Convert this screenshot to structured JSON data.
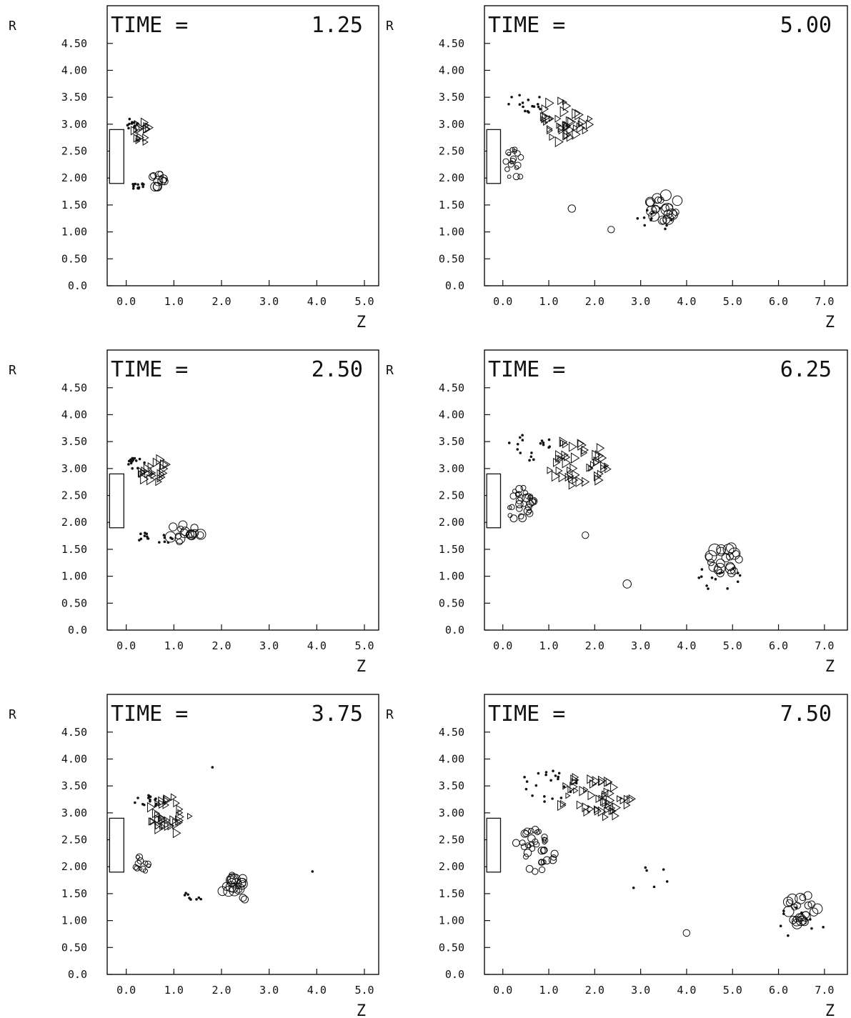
{
  "chart_data": [
    {
      "type": "scatter",
      "title_prefix": "TIME =",
      "time": "1.25",
      "xlabel": "Z",
      "ylabel": "R",
      "xticks": [
        "0.0",
        "1.0",
        "2.0",
        "3.0",
        "4.0",
        "5.0"
      ],
      "yticks": [
        "0.0",
        "0.50",
        "1.00",
        "1.50",
        "2.00",
        "2.50",
        "3.00",
        "3.50",
        "4.00",
        "4.50"
      ],
      "xlim": [
        -0.4,
        5.3
      ],
      "ylim": [
        0,
        5.2
      ],
      "nozzle": {
        "z": [
          -0.35,
          -0.05
        ],
        "r": [
          1.9,
          2.9
        ]
      },
      "clusters": [
        {
          "marker": "triangle",
          "cz": 0.3,
          "cr": 2.85,
          "sz": 0.18,
          "sr": 0.22,
          "n": 16,
          "size": 0.08
        },
        {
          "marker": "dot",
          "cz": 0.1,
          "cr": 3.0,
          "sz": 0.15,
          "sr": 0.1,
          "n": 12,
          "size": 0.03
        },
        {
          "marker": "circle",
          "cz": 0.7,
          "cr": 1.95,
          "sz": 0.18,
          "sr": 0.15,
          "n": 12,
          "size": 0.09
        },
        {
          "marker": "dot",
          "cz": 0.25,
          "cr": 1.85,
          "sz": 0.15,
          "sr": 0.06,
          "n": 14,
          "size": 0.03
        }
      ]
    },
    {
      "type": "scatter",
      "title_prefix": "TIME =",
      "time": "2.50",
      "xlabel": "Z",
      "ylabel": "R",
      "xticks": [
        "0.0",
        "1.0",
        "2.0",
        "3.0",
        "4.0",
        "5.0"
      ],
      "yticks": [
        "0.0",
        "0.50",
        "1.00",
        "1.50",
        "2.00",
        "2.50",
        "3.00",
        "3.50",
        "4.00",
        "4.50"
      ],
      "xlim": [
        -0.4,
        5.3
      ],
      "ylim": [
        0,
        5.2
      ],
      "nozzle": {
        "z": [
          -0.35,
          -0.05
        ],
        "r": [
          1.9,
          2.9
        ]
      },
      "clusters": [
        {
          "marker": "triangle",
          "cz": 0.6,
          "cr": 2.95,
          "sz": 0.3,
          "sr": 0.25,
          "n": 22,
          "size": 0.09
        },
        {
          "marker": "dot",
          "cz": 0.2,
          "cr": 3.1,
          "sz": 0.2,
          "sr": 0.12,
          "n": 14,
          "size": 0.03
        },
        {
          "marker": "circle",
          "cz": 1.25,
          "cr": 1.8,
          "sz": 0.35,
          "sr": 0.18,
          "n": 18,
          "size": 0.1
        },
        {
          "marker": "dot",
          "cz": 0.6,
          "cr": 1.7,
          "sz": 0.45,
          "sr": 0.12,
          "n": 16,
          "size": 0.03
        }
      ]
    },
    {
      "type": "scatter",
      "title_prefix": "TIME =",
      "time": "3.75",
      "xlabel": "Z",
      "ylabel": "R",
      "xticks": [
        "0.0",
        "1.0",
        "2.0",
        "3.0",
        "4.0",
        "5.0"
      ],
      "yticks": [
        "0.0",
        "0.50",
        "1.00",
        "1.50",
        "2.00",
        "2.50",
        "3.00",
        "3.50",
        "4.00",
        "4.50"
      ],
      "xlim": [
        -0.4,
        5.3
      ],
      "ylim": [
        0,
        5.2
      ],
      "nozzle": {
        "z": [
          -0.35,
          -0.05
        ],
        "r": [
          1.9,
          2.9
        ]
      },
      "clusters": [
        {
          "marker": "triangle",
          "cz": 0.9,
          "cr": 2.95,
          "sz": 0.45,
          "sr": 0.35,
          "n": 34,
          "size": 0.09
        },
        {
          "marker": "dot",
          "cz": 0.4,
          "cr": 3.2,
          "sz": 0.3,
          "sr": 0.15,
          "n": 14,
          "size": 0.03
        },
        {
          "marker": "circle",
          "cz": 0.3,
          "cr": 2.05,
          "sz": 0.2,
          "sr": 0.15,
          "n": 12,
          "size": 0.06
        },
        {
          "marker": "circle",
          "cz": 2.3,
          "cr": 1.6,
          "sz": 0.35,
          "sr": 0.25,
          "n": 22,
          "size": 0.1
        },
        {
          "marker": "dot",
          "cz": 1.4,
          "cr": 1.45,
          "sz": 0.25,
          "sr": 0.1,
          "n": 8,
          "size": 0.03
        },
        {
          "marker": "dot",
          "cz": 1.8,
          "cr": 3.85,
          "sz": 0.02,
          "sr": 0.02,
          "n": 1,
          "size": 0.03
        },
        {
          "marker": "dot",
          "cz": 3.9,
          "cr": 1.9,
          "sz": 0.02,
          "sr": 0.02,
          "n": 1,
          "size": 0.03
        }
      ]
    },
    {
      "type": "scatter",
      "title_prefix": "TIME =",
      "time": "5.00",
      "xlabel": "Z",
      "ylabel": "R",
      "xticks": [
        "0.0",
        "1.0",
        "2.0",
        "3.0",
        "4.0",
        "5.0",
        "6.0",
        "7.0"
      ],
      "yticks": [
        "0.0",
        "0.50",
        "1.00",
        "1.50",
        "2.00",
        "2.50",
        "3.00",
        "3.50",
        "4.00",
        "4.50"
      ],
      "xlim": [
        -0.4,
        7.5
      ],
      "ylim": [
        0,
        5.2
      ],
      "nozzle": {
        "z": [
          -0.35,
          -0.05
        ],
        "r": [
          1.9,
          2.9
        ]
      },
      "clusters": [
        {
          "marker": "triangle",
          "cz": 1.3,
          "cr": 3.05,
          "sz": 0.6,
          "sr": 0.4,
          "n": 40,
          "size": 0.09
        },
        {
          "marker": "dot",
          "cz": 0.5,
          "cr": 3.4,
          "sz": 0.4,
          "sr": 0.2,
          "n": 16,
          "size": 0.03
        },
        {
          "marker": "circle",
          "cz": 0.25,
          "cr": 2.25,
          "sz": 0.2,
          "sr": 0.3,
          "n": 18,
          "size": 0.06
        },
        {
          "marker": "circle",
          "cz": 3.5,
          "cr": 1.45,
          "sz": 0.35,
          "sr": 0.25,
          "n": 22,
          "size": 0.11
        },
        {
          "marker": "dot",
          "cz": 3.4,
          "cr": 1.2,
          "sz": 0.5,
          "sr": 0.25,
          "n": 12,
          "size": 0.03
        },
        {
          "marker": "circle",
          "cz": 1.5,
          "cr": 1.45,
          "sz": 0.02,
          "sr": 0.02,
          "n": 1,
          "size": 0.07
        },
        {
          "marker": "circle",
          "cz": 2.35,
          "cr": 1.05,
          "sz": 0.02,
          "sr": 0.02,
          "n": 1,
          "size": 0.08
        }
      ]
    },
    {
      "type": "scatter",
      "title_prefix": "TIME =",
      "time": "6.25",
      "xlabel": "Z",
      "ylabel": "R",
      "xticks": [
        "0.0",
        "1.0",
        "2.0",
        "3.0",
        "4.0",
        "5.0",
        "6.0",
        "7.0"
      ],
      "yticks": [
        "0.0",
        "0.50",
        "1.00",
        "1.50",
        "2.00",
        "2.50",
        "3.00",
        "3.50",
        "4.00",
        "4.50"
      ],
      "xlim": [
        -0.4,
        7.5
      ],
      "ylim": [
        0,
        5.2
      ],
      "nozzle": {
        "z": [
          -0.35,
          -0.05
        ],
        "r": [
          1.9,
          2.9
        ]
      },
      "clusters": [
        {
          "marker": "triangle",
          "cz": 1.6,
          "cr": 3.1,
          "sz": 0.7,
          "sr": 0.45,
          "n": 46,
          "size": 0.09
        },
        {
          "marker": "dot",
          "cz": 0.6,
          "cr": 3.4,
          "sz": 0.5,
          "sr": 0.25,
          "n": 18,
          "size": 0.03
        },
        {
          "marker": "circle",
          "cz": 0.4,
          "cr": 2.3,
          "sz": 0.3,
          "sr": 0.35,
          "n": 30,
          "size": 0.07
        },
        {
          "marker": "circle",
          "cz": 4.8,
          "cr": 1.3,
          "sz": 0.35,
          "sr": 0.3,
          "n": 22,
          "size": 0.11
        },
        {
          "marker": "dot",
          "cz": 4.7,
          "cr": 1.0,
          "sz": 0.5,
          "sr": 0.3,
          "n": 14,
          "size": 0.03
        },
        {
          "marker": "circle",
          "cz": 1.8,
          "cr": 1.75,
          "sz": 0.02,
          "sr": 0.02,
          "n": 1,
          "size": 0.08
        },
        {
          "marker": "circle",
          "cz": 2.7,
          "cr": 0.85,
          "sz": 0.02,
          "sr": 0.02,
          "n": 1,
          "size": 0.08
        }
      ]
    },
    {
      "type": "scatter",
      "title_prefix": "TIME =",
      "time": "7.50",
      "xlabel": "Z",
      "ylabel": "R",
      "xticks": [
        "0.0",
        "1.0",
        "2.0",
        "3.0",
        "4.0",
        "5.0",
        "6.0",
        "7.0"
      ],
      "yticks": [
        "0.0",
        "0.50",
        "1.00",
        "1.50",
        "2.00",
        "2.50",
        "3.00",
        "3.50",
        "4.00",
        "4.50"
      ],
      "xlim": [
        -0.4,
        7.5
      ],
      "ylim": [
        0,
        5.2
      ],
      "nozzle": {
        "z": [
          -0.35,
          -0.05
        ],
        "r": [
          1.9,
          2.9
        ]
      },
      "clusters": [
        {
          "marker": "triangle",
          "cz": 2.0,
          "cr": 3.3,
          "sz": 0.8,
          "sr": 0.45,
          "n": 52,
          "size": 0.09
        },
        {
          "marker": "dot",
          "cz": 1.0,
          "cr": 3.5,
          "sz": 0.7,
          "sr": 0.3,
          "n": 22,
          "size": 0.03
        },
        {
          "marker": "circle",
          "cz": 0.7,
          "cr": 2.3,
          "sz": 0.45,
          "sr": 0.4,
          "n": 36,
          "size": 0.07
        },
        {
          "marker": "circle",
          "cz": 6.5,
          "cr": 1.2,
          "sz": 0.35,
          "sr": 0.3,
          "n": 24,
          "size": 0.1
        },
        {
          "marker": "dot",
          "cz": 6.5,
          "cr": 0.95,
          "sz": 0.6,
          "sr": 0.3,
          "n": 10,
          "size": 0.03
        },
        {
          "marker": "circle",
          "cz": 4.0,
          "cr": 0.75,
          "sz": 0.02,
          "sr": 0.02,
          "n": 1,
          "size": 0.08
        },
        {
          "marker": "dot",
          "cz": 3.2,
          "cr": 1.8,
          "sz": 0.5,
          "sr": 0.4,
          "n": 6,
          "size": 0.03
        }
      ]
    }
  ]
}
